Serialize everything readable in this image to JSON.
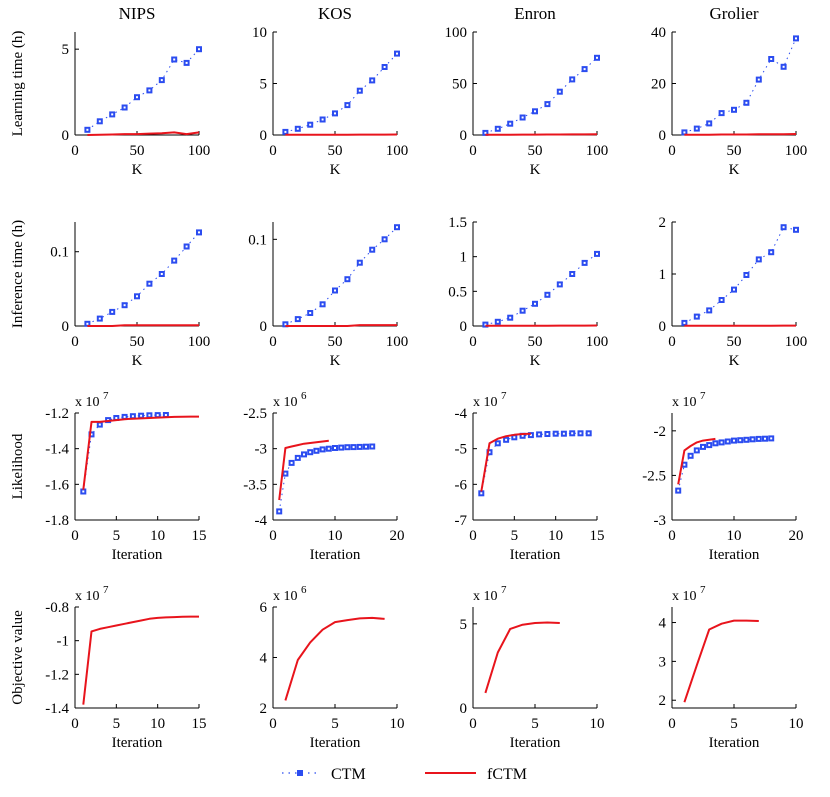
{
  "colors": {
    "ctm": "#2b4cf0",
    "fctm": "#e8141c",
    "axis": "#000000"
  },
  "legend": {
    "ctm_label": "CTM",
    "fctm_label": "fCTM"
  },
  "column_titles": [
    "NIPS",
    "KOS",
    "Enron",
    "Grolier"
  ],
  "chart_data": [
    {
      "type": "line",
      "title": "NIPS",
      "xlabel": "K",
      "ylabel": "Learning time (h)",
      "xlim": [
        0,
        100
      ],
      "ylim": [
        0,
        6
      ],
      "xticks": [
        0,
        50,
        100
      ],
      "yticks": [
        0,
        5
      ],
      "multiplier": "",
      "series": [
        {
          "name": "CTM",
          "style": "markers",
          "x": [
            10,
            20,
            30,
            40,
            50,
            60,
            70,
            80,
            90,
            100
          ],
          "y": [
            0.3,
            0.8,
            1.2,
            1.6,
            2.2,
            2.6,
            3.2,
            4.4,
            4.2,
            5.0
          ]
        },
        {
          "name": "fCTM",
          "style": "line",
          "x": [
            10,
            20,
            30,
            40,
            50,
            60,
            70,
            80,
            90,
            100
          ],
          "y": [
            0.0,
            0.02,
            0.03,
            0.05,
            0.05,
            0.08,
            0.1,
            0.15,
            0.05,
            0.15
          ]
        }
      ]
    },
    {
      "type": "line",
      "title": "KOS",
      "xlabel": "K",
      "ylabel": "",
      "xlim": [
        0,
        100
      ],
      "ylim": [
        0,
        10
      ],
      "xticks": [
        0,
        50,
        100
      ],
      "yticks": [
        0,
        5,
        10
      ],
      "multiplier": "",
      "series": [
        {
          "name": "CTM",
          "style": "markers",
          "x": [
            10,
            20,
            30,
            40,
            50,
            60,
            70,
            80,
            90,
            100
          ],
          "y": [
            0.3,
            0.6,
            1.0,
            1.5,
            2.1,
            2.9,
            4.3,
            5.3,
            6.6,
            7.9
          ]
        },
        {
          "name": "fCTM",
          "style": "line",
          "x": [
            10,
            20,
            30,
            40,
            50,
            60,
            70,
            80,
            90,
            100
          ],
          "y": [
            0.02,
            0.02,
            0.03,
            0.03,
            0.03,
            0.03,
            0.04,
            0.04,
            0.04,
            0.05
          ]
        }
      ]
    },
    {
      "type": "line",
      "title": "Enron",
      "xlabel": "K",
      "ylabel": "",
      "xlim": [
        0,
        100
      ],
      "ylim": [
        0,
        100
      ],
      "xticks": [
        0,
        50,
        100
      ],
      "yticks": [
        0,
        50,
        100
      ],
      "multiplier": "",
      "series": [
        {
          "name": "CTM",
          "style": "markers",
          "x": [
            10,
            20,
            30,
            40,
            50,
            60,
            70,
            80,
            90,
            100
          ],
          "y": [
            2,
            6,
            11,
            17,
            23,
            30,
            42,
            54,
            64,
            75
          ]
        },
        {
          "name": "fCTM",
          "style": "line",
          "x": [
            10,
            20,
            30,
            40,
            50,
            60,
            70,
            80,
            90,
            100
          ],
          "y": [
            0.2,
            0.3,
            0.3,
            0.4,
            0.4,
            0.5,
            0.5,
            0.6,
            0.6,
            0.7
          ]
        }
      ]
    },
    {
      "type": "line",
      "title": "Grolier",
      "xlabel": "K",
      "ylabel": "",
      "xlim": [
        0,
        100
      ],
      "ylim": [
        0,
        40
      ],
      "xticks": [
        0,
        50,
        100
      ],
      "yticks": [
        0,
        20,
        40
      ],
      "multiplier": "",
      "series": [
        {
          "name": "CTM",
          "style": "markers",
          "x": [
            10,
            20,
            30,
            40,
            50,
            60,
            70,
            80,
            90,
            100
          ],
          "y": [
            1,
            2.5,
            4.5,
            8.5,
            9.8,
            12.5,
            21.5,
            29.5,
            26.5,
            37.5
          ]
        },
        {
          "name": "fCTM",
          "style": "line",
          "x": [
            10,
            20,
            30,
            40,
            50,
            60,
            70,
            80,
            90,
            100
          ],
          "y": [
            0.1,
            0.1,
            0.1,
            0.2,
            0.2,
            0.2,
            0.3,
            0.3,
            0.3,
            0.4
          ]
        }
      ]
    },
    {
      "type": "line",
      "title": "",
      "xlabel": "K",
      "ylabel": "Inference time (h)",
      "xlim": [
        0,
        100
      ],
      "ylim": [
        0,
        0.14
      ],
      "xticks": [
        0,
        50,
        100
      ],
      "yticks": [
        0,
        0.1
      ],
      "multiplier": "",
      "series": [
        {
          "name": "CTM",
          "style": "markers",
          "x": [
            10,
            20,
            30,
            40,
            50,
            60,
            70,
            80,
            90,
            100
          ],
          "y": [
            0.003,
            0.01,
            0.019,
            0.028,
            0.04,
            0.057,
            0.07,
            0.088,
            0.107,
            0.126
          ]
        },
        {
          "name": "fCTM",
          "style": "line",
          "x": [
            10,
            20,
            30,
            40,
            50,
            60,
            70,
            80,
            90,
            100
          ],
          "y": [
            0.0,
            0.0,
            0.0,
            0.001,
            0.001,
            0.001,
            0.001,
            0.001,
            0.001,
            0.001
          ]
        }
      ]
    },
    {
      "type": "line",
      "title": "",
      "xlabel": "K",
      "ylabel": "",
      "xlim": [
        0,
        100
      ],
      "ylim": [
        0,
        0.12
      ],
      "xticks": [
        0,
        50,
        100
      ],
      "yticks": [
        0,
        0.1
      ],
      "multiplier": "",
      "series": [
        {
          "name": "CTM",
          "style": "markers",
          "x": [
            10,
            20,
            30,
            40,
            50,
            60,
            70,
            80,
            90,
            100
          ],
          "y": [
            0.002,
            0.008,
            0.015,
            0.025,
            0.041,
            0.054,
            0.073,
            0.088,
            0.1,
            0.114
          ]
        },
        {
          "name": "fCTM",
          "style": "line",
          "x": [
            10,
            20,
            30,
            40,
            50,
            60,
            70,
            80,
            90,
            100
          ],
          "y": [
            0.0,
            0.0,
            0.0,
            0.0,
            0.0,
            0.0,
            0.001,
            0.001,
            0.001,
            0.001
          ]
        }
      ]
    },
    {
      "type": "line",
      "title": "",
      "xlabel": "K",
      "ylabel": "",
      "xlim": [
        0,
        100
      ],
      "ylim": [
        0,
        1.5
      ],
      "xticks": [
        0,
        50,
        100
      ],
      "yticks": [
        0,
        0.5,
        1,
        1.5
      ],
      "multiplier": "",
      "series": [
        {
          "name": "CTM",
          "style": "markers",
          "x": [
            10,
            20,
            30,
            40,
            50,
            60,
            70,
            80,
            90,
            100
          ],
          "y": [
            0.02,
            0.06,
            0.12,
            0.22,
            0.32,
            0.45,
            0.6,
            0.75,
            0.91,
            1.04
          ]
        },
        {
          "name": "fCTM",
          "style": "line",
          "x": [
            10,
            20,
            30,
            40,
            50,
            60,
            70,
            80,
            90,
            100
          ],
          "y": [
            0.003,
            0.003,
            0.004,
            0.004,
            0.005,
            0.005,
            0.006,
            0.006,
            0.006,
            0.007
          ]
        }
      ]
    },
    {
      "type": "line",
      "title": "",
      "xlabel": "K",
      "ylabel": "",
      "xlim": [
        0,
        100
      ],
      "ylim": [
        0,
        2
      ],
      "xticks": [
        0,
        50,
        100
      ],
      "yticks": [
        0,
        1,
        2
      ],
      "multiplier": "",
      "series": [
        {
          "name": "CTM",
          "style": "markers",
          "x": [
            10,
            20,
            30,
            40,
            50,
            60,
            70,
            80,
            90,
            100
          ],
          "y": [
            0.06,
            0.18,
            0.3,
            0.5,
            0.7,
            0.98,
            1.28,
            1.42,
            1.9,
            1.85
          ]
        },
        {
          "name": "fCTM",
          "style": "line",
          "x": [
            10,
            20,
            30,
            40,
            50,
            60,
            70,
            80,
            90,
            100
          ],
          "y": [
            0.003,
            0.003,
            0.004,
            0.004,
            0.005,
            0.005,
            0.006,
            0.006,
            0.007,
            0.007
          ]
        }
      ]
    },
    {
      "type": "line",
      "title": "",
      "xlabel": "Iteration",
      "ylabel": "Likelihood",
      "xlim": [
        0,
        15
      ],
      "ylim": [
        -1.8,
        -1.2
      ],
      "xticks": [
        0,
        5,
        10,
        15
      ],
      "yticks": [
        -1.8,
        -1.6,
        -1.4,
        -1.2
      ],
      "multiplier": "x 10^7",
      "series": [
        {
          "name": "CTM",
          "style": "markers",
          "x": [
            1,
            2,
            3,
            4,
            5,
            6,
            7,
            8,
            9,
            10,
            11
          ],
          "y": [
            -1.64,
            -1.32,
            -1.265,
            -1.24,
            -1.228,
            -1.222,
            -1.218,
            -1.215,
            -1.213,
            -1.212,
            -1.211
          ]
        },
        {
          "name": "fCTM",
          "style": "line",
          "x": [
            1,
            2,
            3,
            4,
            5,
            6,
            7,
            8,
            9,
            10,
            11,
            12,
            13,
            14,
            15
          ],
          "y": [
            -1.63,
            -1.25,
            -1.25,
            -1.245,
            -1.24,
            -1.235,
            -1.232,
            -1.23,
            -1.228,
            -1.226,
            -1.224,
            -1.222,
            -1.221,
            -1.22,
            -1.22
          ]
        }
      ]
    },
    {
      "type": "line",
      "title": "",
      "xlabel": "Iteration",
      "ylabel": "",
      "xlim": [
        0,
        20
      ],
      "ylim": [
        -4,
        -2.5
      ],
      "xticks": [
        0,
        10,
        20
      ],
      "yticks": [
        -4,
        -3.5,
        -3,
        -2.5
      ],
      "multiplier": "x 10^6",
      "series": [
        {
          "name": "CTM",
          "style": "markers",
          "x": [
            1,
            2,
            3,
            4,
            5,
            6,
            7,
            8,
            9,
            10,
            11,
            12,
            13,
            14,
            15,
            16
          ],
          "y": [
            -3.88,
            -3.35,
            -3.2,
            -3.13,
            -3.08,
            -3.05,
            -3.03,
            -3.01,
            -3.0,
            -2.99,
            -2.985,
            -2.98,
            -2.978,
            -2.975,
            -2.973,
            -2.97
          ]
        },
        {
          "name": "fCTM",
          "style": "line",
          "x": [
            1,
            2,
            3,
            4,
            5,
            6,
            7,
            8,
            9
          ],
          "y": [
            -3.72,
            -2.99,
            -2.97,
            -2.95,
            -2.93,
            -2.92,
            -2.91,
            -2.9,
            -2.89
          ]
        }
      ]
    },
    {
      "type": "line",
      "title": "",
      "xlabel": "Iteration",
      "ylabel": "",
      "xlim": [
        0,
        15
      ],
      "ylim": [
        -7,
        -4
      ],
      "xticks": [
        0,
        5,
        10,
        15
      ],
      "yticks": [
        -7,
        -6,
        -5,
        -4
      ],
      "multiplier": "x 10^7",
      "series": [
        {
          "name": "CTM",
          "style": "markers",
          "x": [
            1,
            2,
            3,
            4,
            5,
            6,
            7,
            8,
            9,
            10,
            11,
            12,
            13,
            14
          ],
          "y": [
            -6.25,
            -5.1,
            -4.85,
            -4.75,
            -4.68,
            -4.64,
            -4.62,
            -4.6,
            -4.59,
            -4.58,
            -4.58,
            -4.57,
            -4.57,
            -4.57
          ]
        },
        {
          "name": "fCTM",
          "style": "line",
          "x": [
            1,
            2,
            3,
            4,
            5,
            6,
            7
          ],
          "y": [
            -6.2,
            -4.85,
            -4.72,
            -4.65,
            -4.61,
            -4.59,
            -4.58
          ]
        }
      ]
    },
    {
      "type": "line",
      "title": "",
      "xlabel": "Iteration",
      "ylabel": "",
      "xlim": [
        0,
        20
      ],
      "ylim": [
        -3,
        -1.8
      ],
      "xticks": [
        0,
        10,
        20
      ],
      "yticks": [
        -3,
        -2.5,
        -2
      ],
      "multiplier": "x 10^7",
      "series": [
        {
          "name": "CTM",
          "style": "markers",
          "x": [
            1,
            2,
            3,
            4,
            5,
            6,
            7,
            8,
            9,
            10,
            11,
            12,
            13,
            14,
            15,
            16
          ],
          "y": [
            -2.67,
            -2.38,
            -2.28,
            -2.22,
            -2.18,
            -2.16,
            -2.14,
            -2.13,
            -2.12,
            -2.11,
            -2.105,
            -2.1,
            -2.095,
            -2.09,
            -2.088,
            -2.085
          ]
        },
        {
          "name": "fCTM",
          "style": "line",
          "x": [
            1,
            2,
            3,
            4,
            5,
            6,
            7
          ],
          "y": [
            -2.6,
            -2.22,
            -2.17,
            -2.13,
            -2.11,
            -2.1,
            -2.09
          ]
        }
      ]
    },
    {
      "type": "line",
      "title": "",
      "xlabel": "Iteration",
      "ylabel": "Objective value",
      "xlim": [
        0,
        15
      ],
      "ylim": [
        -1.4,
        -0.8
      ],
      "xticks": [
        0,
        5,
        10,
        15
      ],
      "yticks": [
        -1.4,
        -1.2,
        -1,
        -0.8
      ],
      "multiplier": "x 10^7",
      "series": [
        {
          "name": "fCTM",
          "style": "line",
          "x": [
            1,
            2,
            3,
            4,
            5,
            6,
            7,
            8,
            9,
            10,
            11,
            12,
            13,
            14,
            15
          ],
          "y": [
            -1.38,
            -0.945,
            -0.93,
            -0.92,
            -0.91,
            -0.9,
            -0.89,
            -0.88,
            -0.87,
            -0.865,
            -0.862,
            -0.86,
            -0.858,
            -0.857,
            -0.857
          ]
        }
      ]
    },
    {
      "type": "line",
      "title": "",
      "xlabel": "Iteration",
      "ylabel": "",
      "xlim": [
        0,
        10
      ],
      "ylim": [
        2,
        6
      ],
      "xticks": [
        0,
        5,
        10
      ],
      "yticks": [
        2,
        4,
        6
      ],
      "multiplier": "x 10^6",
      "series": [
        {
          "name": "fCTM",
          "style": "line",
          "x": [
            1,
            2,
            3,
            4,
            5,
            6,
            7,
            8,
            9
          ],
          "y": [
            2.3,
            3.9,
            4.6,
            5.1,
            5.4,
            5.48,
            5.55,
            5.57,
            5.53
          ]
        }
      ]
    },
    {
      "type": "line",
      "title": "",
      "xlabel": "Iteration",
      "ylabel": "",
      "xlim": [
        0,
        10
      ],
      "ylim": [
        0,
        6
      ],
      "xticks": [
        0,
        5,
        10
      ],
      "yticks": [
        0,
        5
      ],
      "multiplier": "x 10^7",
      "series": [
        {
          "name": "fCTM",
          "style": "line",
          "x": [
            1,
            2,
            3,
            4,
            5,
            6,
            7
          ],
          "y": [
            0.9,
            3.3,
            4.7,
            4.95,
            5.05,
            5.08,
            5.05
          ]
        }
      ]
    },
    {
      "type": "line",
      "title": "",
      "xlabel": "Iteration",
      "ylabel": "",
      "xlim": [
        0,
        10
      ],
      "ylim": [
        1.8,
        4.4
      ],
      "xticks": [
        0,
        5,
        10
      ],
      "yticks": [
        2,
        3,
        4
      ],
      "multiplier": "x 10^7",
      "series": [
        {
          "name": "fCTM",
          "style": "line",
          "x": [
            1,
            2,
            3,
            4,
            5,
            6,
            7
          ],
          "y": [
            1.95,
            2.9,
            3.82,
            3.97,
            4.05,
            4.05,
            4.04
          ]
        }
      ]
    }
  ]
}
